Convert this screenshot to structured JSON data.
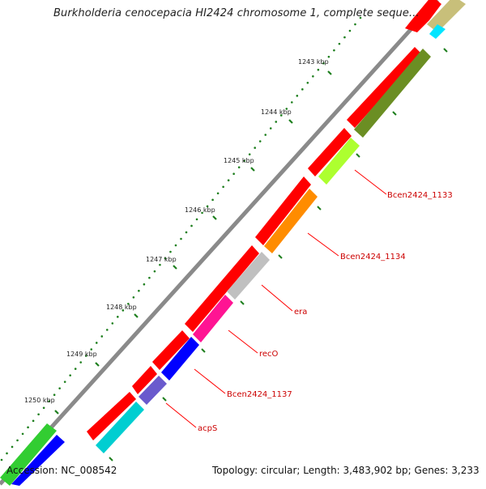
{
  "title": "Burkholderia cenocepacia HI2424 chromosome 1, complete seque...",
  "footer": {
    "accession_label": "Accession: ",
    "accession": "NC_008542",
    "topology_label": "Topology: ",
    "topology": "circular",
    "length_label": "; Length: ",
    "length": "3,483,902 bp",
    "genes_label": "; Genes: ",
    "genes": "3,233"
  },
  "ticks": [
    "1243 kbp",
    "1244 kbp",
    "1245 kbp",
    "1246 kbp",
    "1247 kbp",
    "1248 kbp",
    "1249 kbp",
    "1250 kbp"
  ],
  "gene_labels": [
    "Bcen2424_1133",
    "Bcen2424_1134",
    "era",
    "recO",
    "Bcen2424_1137",
    "acpS"
  ],
  "colors": {
    "forward": "#ff0000",
    "backbone": "#8a8a8a",
    "tick": "#1e7f1e",
    "label_line": "#ff0000",
    "label_text": "#cc0000",
    "gene_olive": "#6b8e23",
    "gene_lime": "#adff2f",
    "gene_orange": "#ff8c00",
    "gene_gray": "#c0c0c0",
    "gene_pink": "#ff1493",
    "gene_blue": "#0000ff",
    "gene_slate": "#6a5acd",
    "gene_cyan": "#00ced1",
    "gene_green": "#32cd32"
  }
}
